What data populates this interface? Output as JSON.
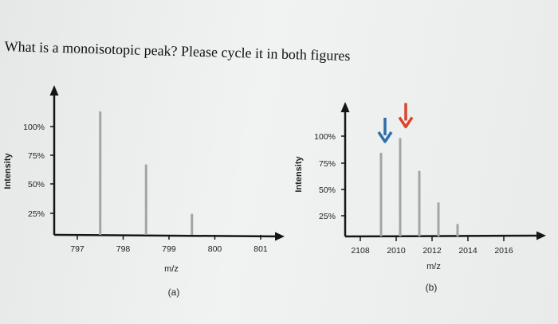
{
  "question": "What is a monoisotopic peak? Please cycle it in both figures",
  "colors": {
    "peak": "#a4a4a4",
    "axis": "#151515",
    "arrow_blue": "#2d6ea8",
    "arrow_red": "#d9452a"
  },
  "chart_data": [
    {
      "type": "bar",
      "panel_label": "(a)",
      "xlabel": "m/z",
      "ylabel": "Intensity",
      "x_ticks": [
        "797",
        "798",
        "799",
        "800",
        "801"
      ],
      "y_ticks": [
        "25%",
        "50%",
        "75%",
        "100%"
      ],
      "xlim": [
        796.3,
        801.6
      ],
      "ylim": [
        0,
        112
      ],
      "x": [
        797.5,
        798.5,
        799.5
      ],
      "values": [
        100,
        57,
        17
      ],
      "grid": false
    },
    {
      "type": "bar",
      "panel_label": "(b)",
      "xlabel": "m/z",
      "ylabel": "Intensity",
      "x_ticks": [
        "2108",
        "2010",
        "2012",
        "2014",
        "2016"
      ],
      "y_ticks": [
        "25%",
        "50%",
        "75%",
        "100%"
      ],
      "xlim": [
        2106.3,
        2017.4
      ],
      "ylim": [
        0,
        126
      ],
      "x": [
        2109.0,
        2110.0,
        2111.0,
        2112.0,
        2113.0
      ],
      "values": [
        74,
        87,
        58,
        30,
        11
      ],
      "grid": false,
      "annotations": [
        {
          "type": "arrow-down",
          "color": "blue",
          "x": 2109.0
        },
        {
          "type": "arrow-down",
          "color": "red",
          "x": 2110.0
        }
      ]
    }
  ]
}
